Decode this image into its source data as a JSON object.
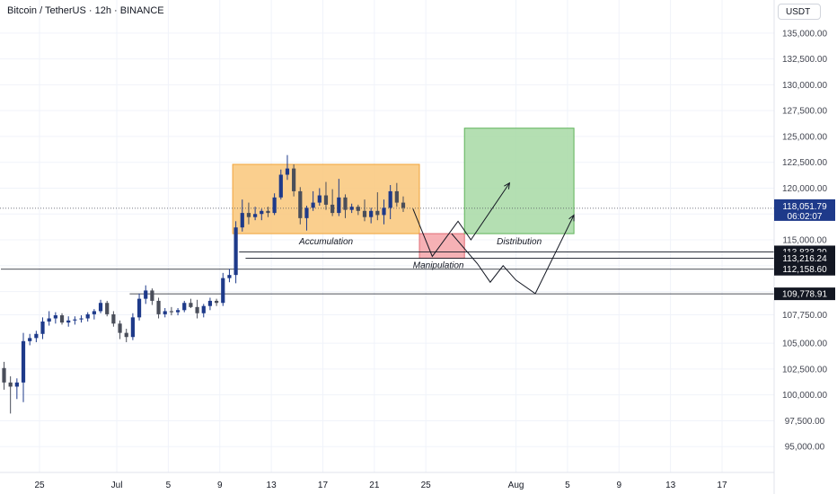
{
  "header": {
    "symbol_title": "Bitcoin / TetherUS · 12h · BINANCE",
    "currency_button": "USDT"
  },
  "colors": {
    "up_candle": "#1e3a8a",
    "down_candle": "#4a4e5a",
    "accumulation_fill": "#f9c77a",
    "manipulation_fill": "#f4a3a8",
    "distribution_fill": "#a7d9a4",
    "axis_text": "#434651",
    "grid": "#f0f3fa"
  },
  "chart_data": {
    "type": "candlestick",
    "y_ticks": [
      "95,000.00",
      "97,500.00",
      "100,000.00",
      "102,500.00",
      "105,000.00",
      "107,750.00",
      "110,000.00",
      "112,500.00",
      "115,000.00",
      "117,500.00",
      "120,000.00",
      "122,500.00",
      "125,000.00",
      "127,500.00",
      "130,000.00",
      "132,500.00",
      "135,000.00"
    ],
    "y_tick_values": [
      95000,
      97500,
      100000,
      102500,
      105000,
      107750,
      110000,
      112500,
      115000,
      117500,
      120000,
      122500,
      125000,
      127500,
      130000,
      132500,
      135000
    ],
    "x_ticks": [
      {
        "label": "25",
        "date": "2025-06-25"
      },
      {
        "label": "Jul",
        "date": "2025-07-01"
      },
      {
        "label": "5",
        "date": "2025-07-05"
      },
      {
        "label": "9",
        "date": "2025-07-09"
      },
      {
        "label": "13",
        "date": "2025-07-13"
      },
      {
        "label": "17",
        "date": "2025-07-17"
      },
      {
        "label": "21",
        "date": "2025-07-21"
      },
      {
        "label": "25",
        "date": "2025-07-25"
      },
      {
        "label": "Aug",
        "date": "2025-08-01"
      },
      {
        "label": "5",
        "date": "2025-08-05"
      },
      {
        "label": "9",
        "date": "2025-08-09"
      },
      {
        "label": "13",
        "date": "2025-08-13"
      },
      {
        "label": "17",
        "date": "2025-08-17"
      }
    ],
    "date_range": [
      "2025-06-22",
      "2025-08-20"
    ],
    "ylim": [
      92500,
      138200
    ],
    "candles": [
      {
        "t": "2025-06-22T00:00",
        "o": 102600,
        "h": 103200,
        "l": 100500,
        "c": 101200
      },
      {
        "t": "2025-06-22T12:00",
        "o": 101200,
        "h": 101800,
        "l": 98200,
        "c": 100800
      },
      {
        "t": "2025-06-23T00:00",
        "o": 100800,
        "h": 101600,
        "l": 99600,
        "c": 101200
      },
      {
        "t": "2025-06-23T12:00",
        "o": 101200,
        "h": 106000,
        "l": 99300,
        "c": 105200
      },
      {
        "t": "2025-06-24T00:00",
        "o": 105200,
        "h": 105900,
        "l": 104800,
        "c": 105500
      },
      {
        "t": "2025-06-24T12:00",
        "o": 105500,
        "h": 106200,
        "l": 105100,
        "c": 105900
      },
      {
        "t": "2025-06-25T00:00",
        "o": 105900,
        "h": 107500,
        "l": 105400,
        "c": 107100
      },
      {
        "t": "2025-06-25T12:00",
        "o": 107100,
        "h": 108100,
        "l": 106700,
        "c": 107400
      },
      {
        "t": "2025-06-26T00:00",
        "o": 107400,
        "h": 108000,
        "l": 106900,
        "c": 107700
      },
      {
        "t": "2025-06-26T12:00",
        "o": 107700,
        "h": 107900,
        "l": 106800,
        "c": 107000
      },
      {
        "t": "2025-06-27T00:00",
        "o": 107000,
        "h": 107600,
        "l": 106600,
        "c": 107200
      },
      {
        "t": "2025-06-27T12:00",
        "o": 107200,
        "h": 107600,
        "l": 106800,
        "c": 107300
      },
      {
        "t": "2025-06-28T00:00",
        "o": 107300,
        "h": 107700,
        "l": 107000,
        "c": 107400
      },
      {
        "t": "2025-06-28T12:00",
        "o": 107400,
        "h": 108000,
        "l": 107100,
        "c": 107800
      },
      {
        "t": "2025-06-29T00:00",
        "o": 107800,
        "h": 108300,
        "l": 107300,
        "c": 108100
      },
      {
        "t": "2025-06-29T12:00",
        "o": 108100,
        "h": 109200,
        "l": 107900,
        "c": 108900
      },
      {
        "t": "2025-06-30T00:00",
        "o": 108900,
        "h": 109100,
        "l": 107600,
        "c": 107800
      },
      {
        "t": "2025-06-30T12:00",
        "o": 107800,
        "h": 108100,
        "l": 106600,
        "c": 106900
      },
      {
        "t": "2025-07-01T00:00",
        "o": 106900,
        "h": 107200,
        "l": 105400,
        "c": 106000
      },
      {
        "t": "2025-07-01T12:00",
        "o": 106000,
        "h": 106400,
        "l": 105100,
        "c": 105600
      },
      {
        "t": "2025-07-02T00:00",
        "o": 105600,
        "h": 107900,
        "l": 105300,
        "c": 107500
      },
      {
        "t": "2025-07-02T12:00",
        "o": 107500,
        "h": 109800,
        "l": 107200,
        "c": 109300
      },
      {
        "t": "2025-07-03T00:00",
        "o": 109300,
        "h": 110600,
        "l": 108800,
        "c": 110100
      },
      {
        "t": "2025-07-03T12:00",
        "o": 110100,
        "h": 110300,
        "l": 108700,
        "c": 109100
      },
      {
        "t": "2025-07-04T00:00",
        "o": 109100,
        "h": 109400,
        "l": 107400,
        "c": 107800
      },
      {
        "t": "2025-07-04T12:00",
        "o": 107800,
        "h": 108400,
        "l": 107500,
        "c": 108100
      },
      {
        "t": "2025-07-05T00:00",
        "o": 108100,
        "h": 108500,
        "l": 107700,
        "c": 108000
      },
      {
        "t": "2025-07-05T12:00",
        "o": 108000,
        "h": 108400,
        "l": 107700,
        "c": 108200
      },
      {
        "t": "2025-07-06T00:00",
        "o": 108200,
        "h": 109100,
        "l": 108000,
        "c": 108900
      },
      {
        "t": "2025-07-06T12:00",
        "o": 108900,
        "h": 109300,
        "l": 108400,
        "c": 108500
      },
      {
        "t": "2025-07-07T00:00",
        "o": 108500,
        "h": 109200,
        "l": 107400,
        "c": 107900
      },
      {
        "t": "2025-07-07T12:00",
        "o": 107900,
        "h": 108800,
        "l": 107500,
        "c": 108600
      },
      {
        "t": "2025-07-08T00:00",
        "o": 108600,
        "h": 109400,
        "l": 108200,
        "c": 109100
      },
      {
        "t": "2025-07-08T12:00",
        "o": 109100,
        "h": 109300,
        "l": 108600,
        "c": 108900
      },
      {
        "t": "2025-07-09T00:00",
        "o": 108900,
        "h": 111800,
        "l": 108600,
        "c": 111300
      },
      {
        "t": "2025-07-09T12:00",
        "o": 111300,
        "h": 112200,
        "l": 110900,
        "c": 111600
      },
      {
        "t": "2025-07-10T00:00",
        "o": 111600,
        "h": 116800,
        "l": 110800,
        "c": 116200
      },
      {
        "t": "2025-07-10T12:00",
        "o": 116200,
        "h": 118900,
        "l": 115800,
        "c": 117600
      },
      {
        "t": "2025-07-11T00:00",
        "o": 117600,
        "h": 118600,
        "l": 116500,
        "c": 117200
      },
      {
        "t": "2025-07-11T12:00",
        "o": 117200,
        "h": 118200,
        "l": 116900,
        "c": 117500
      },
      {
        "t": "2025-07-12T00:00",
        "o": 117500,
        "h": 118000,
        "l": 116900,
        "c": 117800
      },
      {
        "t": "2025-07-12T12:00",
        "o": 117800,
        "h": 118200,
        "l": 117200,
        "c": 117600
      },
      {
        "t": "2025-07-13T00:00",
        "o": 117600,
        "h": 119500,
        "l": 117400,
        "c": 119100
      },
      {
        "t": "2025-07-13T12:00",
        "o": 119100,
        "h": 121800,
        "l": 118900,
        "c": 121300
      },
      {
        "t": "2025-07-14T00:00",
        "o": 121300,
        "h": 123200,
        "l": 120800,
        "c": 121900
      },
      {
        "t": "2025-07-14T12:00",
        "o": 121900,
        "h": 122300,
        "l": 119200,
        "c": 119700
      },
      {
        "t": "2025-07-15T00:00",
        "o": 119700,
        "h": 120100,
        "l": 116500,
        "c": 117100
      },
      {
        "t": "2025-07-15T12:00",
        "o": 117100,
        "h": 118300,
        "l": 115900,
        "c": 118100
      },
      {
        "t": "2025-07-16T00:00",
        "o": 118100,
        "h": 119700,
        "l": 117800,
        "c": 118600
      },
      {
        "t": "2025-07-16T12:00",
        "o": 118600,
        "h": 120000,
        "l": 118300,
        "c": 119300
      },
      {
        "t": "2025-07-17T00:00",
        "o": 119300,
        "h": 120600,
        "l": 117900,
        "c": 118400
      },
      {
        "t": "2025-07-17T12:00",
        "o": 118400,
        "h": 119900,
        "l": 117300,
        "c": 117600
      },
      {
        "t": "2025-07-18T00:00",
        "o": 117600,
        "h": 120900,
        "l": 117300,
        "c": 119100
      },
      {
        "t": "2025-07-18T12:00",
        "o": 119100,
        "h": 119400,
        "l": 117100,
        "c": 117900
      },
      {
        "t": "2025-07-19T00:00",
        "o": 117900,
        "h": 118500,
        "l": 117600,
        "c": 118200
      },
      {
        "t": "2025-07-19T12:00",
        "o": 118200,
        "h": 118400,
        "l": 117400,
        "c": 117800
      },
      {
        "t": "2025-07-20T00:00",
        "o": 117800,
        "h": 118900,
        "l": 116800,
        "c": 117200
      },
      {
        "t": "2025-07-20T12:00",
        "o": 117200,
        "h": 118100,
        "l": 116600,
        "c": 117800
      },
      {
        "t": "2025-07-21T00:00",
        "o": 117800,
        "h": 119600,
        "l": 116900,
        "c": 117400
      },
      {
        "t": "2025-07-21T12:00",
        "o": 117400,
        "h": 118900,
        "l": 116500,
        "c": 118100
      },
      {
        "t": "2025-07-22T00:00",
        "o": 118100,
        "h": 120300,
        "l": 117000,
        "c": 119700
      },
      {
        "t": "2025-07-22T12:00",
        "o": 119700,
        "h": 120500,
        "l": 118200,
        "c": 118600
      },
      {
        "t": "2025-07-23T00:00",
        "o": 118600,
        "h": 119200,
        "l": 117700,
        "c": 118100
      }
    ],
    "zones": [
      {
        "label": "Accumulation",
        "start": "2025-07-10T00:00",
        "end": "2025-07-24T12:00",
        "top": 122300,
        "bottom": 115600
      },
      {
        "label": "Manipulation",
        "start": "2025-07-24T12:00",
        "end": "2025-07-28T00:00",
        "top": 115600,
        "bottom": 113216
      },
      {
        "label": "Distribution",
        "start": "2025-07-28T00:00",
        "end": "2025-08-05T12:00",
        "top": 125800,
        "bottom": 115600
      }
    ],
    "levels": [
      {
        "label": "113,833.20",
        "value": 113833.2,
        "start": "2025-07-10T12:00"
      },
      {
        "label": "113,216.24",
        "value": 113216.24,
        "start": "2025-07-11T00:00"
      },
      {
        "label": "112,158.60",
        "value": 112158.6,
        "start": "2025-06-22T00:00"
      },
      {
        "label": "109,778.91",
        "value": 109778.91,
        "start": "2025-07-02T00:00"
      }
    ],
    "current_price": {
      "label": "118,051.79",
      "countdown": "06:02:07",
      "value": 118051.79
    },
    "projection_paths": [
      {
        "points": [
          [
            "2025-07-24T00:00",
            118000
          ],
          [
            "2025-07-25T12:00",
            113400
          ],
          [
            "2025-07-27T12:00",
            116800
          ],
          [
            "2025-07-28T12:00",
            115000
          ],
          [
            "2025-07-31T12:00",
            120500
          ]
        ],
        "arrow": true
      },
      {
        "points": [
          [
            "2025-07-27T00:00",
            115600
          ],
          [
            "2025-07-29T00:00",
            112700
          ],
          [
            "2025-07-30T00:00",
            110900
          ],
          [
            "2025-07-31T00:00",
            112500
          ],
          [
            "2025-08-01T00:00",
            111100
          ],
          [
            "2025-08-02T12:00",
            109800
          ],
          [
            "2025-08-05T12:00",
            117400
          ]
        ],
        "arrow": true
      }
    ]
  }
}
